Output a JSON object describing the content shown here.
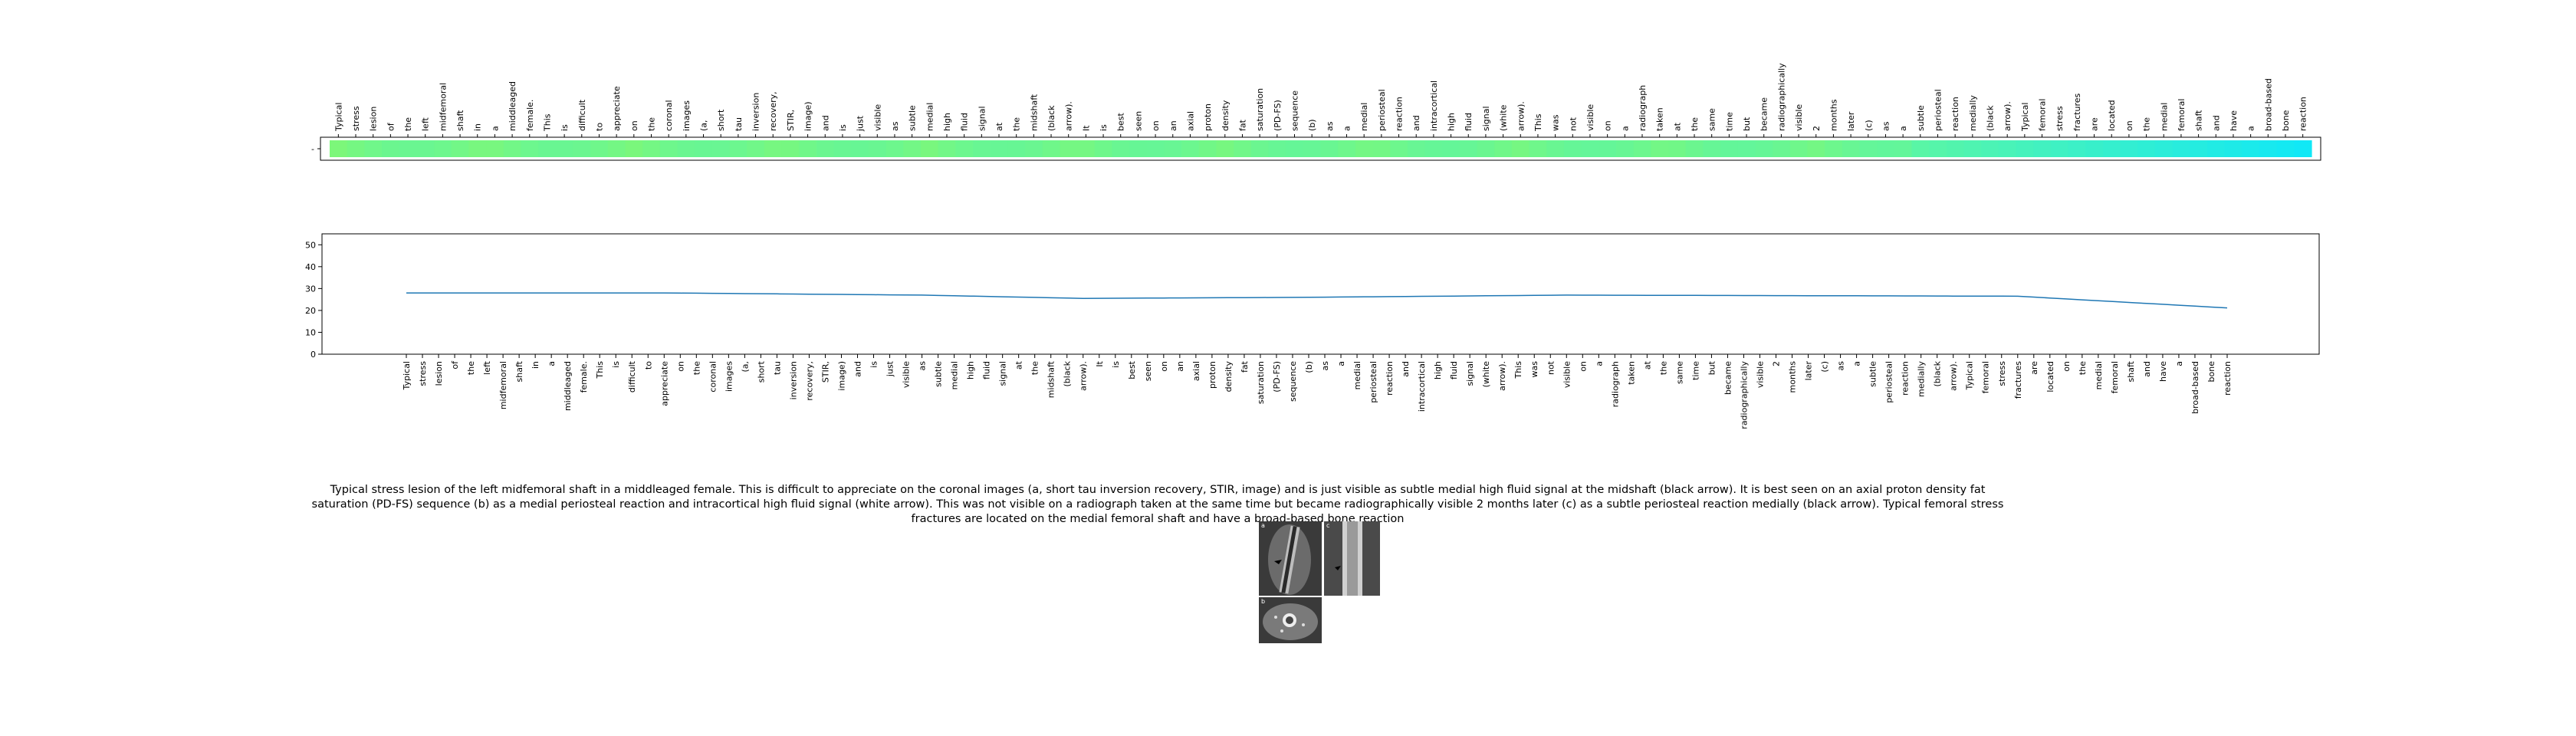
{
  "chart_data": [
    {
      "type": "heatmap",
      "tokens": [
        "Typical",
        "stress",
        "lesion",
        "of",
        "the",
        "left",
        "midfemoral",
        "shaft",
        "in",
        "a",
        "middleaged",
        "female.",
        "This",
        "is",
        "difficult",
        "to",
        "appreciate",
        "on",
        "the",
        "coronal",
        "images",
        "(a,",
        "short",
        "tau",
        "inversion",
        "recovery,",
        "STIR,",
        "image)",
        "and",
        "is",
        "just",
        "visible",
        "as",
        "subtle",
        "medial",
        "high",
        "fluid",
        "signal",
        "at",
        "the",
        "midshaft",
        "(black",
        "arrow).",
        "It",
        "is",
        "best",
        "seen",
        "on",
        "an",
        "axial",
        "proton",
        "density",
        "fat",
        "saturation",
        "(PD-FS)",
        "sequence",
        "(b)",
        "as",
        "a",
        "medial",
        "periosteal",
        "reaction",
        "and",
        "intracortical",
        "high",
        "fluid",
        "signal",
        "(white",
        "arrow).",
        "This",
        "was",
        "not",
        "visible",
        "on",
        "a",
        "radiograph",
        "taken",
        "at",
        "the",
        "same",
        "time",
        "but",
        "became",
        "radiographically",
        "visible",
        "2",
        "months",
        "later",
        "(c)",
        "as",
        "a",
        "subtle",
        "periosteal",
        "reaction",
        "medially",
        "(black",
        "arrow).",
        "Typical",
        "femoral",
        "stress",
        "fractures",
        "are",
        "located",
        "on",
        "the",
        "medial",
        "femoral",
        "shaft",
        "and",
        "have",
        "a",
        "broad-based",
        "bone",
        "reaction"
      ],
      "colors": {
        "start": "#7cf77a",
        "mid": "#5bf6a4",
        "end": "#11e8f6"
      },
      "ytick": "-"
    },
    {
      "type": "line",
      "yticks": [
        0,
        10,
        20,
        30,
        40,
        50
      ],
      "ylim": [
        0,
        55
      ],
      "color": "#1f77b4",
      "x_labels": [
        "Typical",
        "stress",
        "lesion",
        "of",
        "the",
        "left",
        "midfemoral",
        "shaft",
        "in",
        "a",
        "middleaged",
        "female.",
        "This",
        "is",
        "difficult",
        "to",
        "appreciate",
        "on",
        "the",
        "coronal",
        "images",
        "(a,",
        "short",
        "tau",
        "inversion",
        "recovery,",
        "STIR,",
        "image)",
        "and",
        "is",
        "just",
        "visible",
        "as",
        "subtle",
        "medial",
        "high",
        "fluid",
        "signal",
        "at",
        "the",
        "midshaft",
        "(black",
        "arrow).",
        "It",
        "is",
        "best",
        "seen",
        "on",
        "an",
        "axial",
        "proton",
        "density",
        "fat",
        "saturation",
        "(PD-FS)",
        "sequence",
        "(b)",
        "as",
        "a",
        "medial",
        "periosteal",
        "reaction",
        "and",
        "intracortical",
        "high",
        "fluid",
        "signal",
        "(white",
        "arrow).",
        "This",
        "was",
        "not",
        "visible",
        "on",
        "a",
        "radiograph",
        "taken",
        "at",
        "the",
        "same",
        "time",
        "but",
        "became",
        "radiographically",
        "visible",
        "2",
        "months",
        "later",
        "(c)",
        "as",
        "a",
        "subtle",
        "periosteal",
        "reaction",
        "medially",
        "(black",
        "arrow).",
        "Typical",
        "femoral",
        "stress",
        "fractures",
        "are",
        "located",
        "on",
        "the",
        "medial",
        "femoral",
        "shaft",
        "and",
        "have",
        "a",
        "broad-based",
        "bone",
        "reaction"
      ],
      "y_points": [
        {
          "index": 0,
          "value": 28
        },
        {
          "index": 16,
          "value": 28
        },
        {
          "index": 32,
          "value": 27
        },
        {
          "index": 42,
          "value": 25.5
        },
        {
          "index": 56,
          "value": 26
        },
        {
          "index": 72,
          "value": 27
        },
        {
          "index": 100,
          "value": 26.5
        },
        {
          "index": 117,
          "value": 19.5
        }
      ]
    }
  ],
  "caption": "Typical stress lesion of the left midfemoral shaft in a middleaged female. This is difficult to appreciate on the coronal images (a, short tau inversion recovery, STIR, image) and is just visible as subtle medial high fluid signal at the midshaft (black arrow). It is best seen on an axial proton density fat saturation (PD-FS) sequence (b) as a medial periosteal reaction and intracortical high fluid signal (white arrow). This was not visible on a radiograph taken at the same time but became radiographically visible 2 months later (c) as a subtle periosteal reaction medially (black arrow). Typical femoral stress fractures are located on the medial femoral shaft and have a broad-based bone reaction",
  "thumbnails": [
    {
      "name": "coronal-stir-thumbnail",
      "letter": "a"
    },
    {
      "name": "radiograph-thumbnail",
      "letter": "c"
    },
    {
      "name": "axial-pdfs-thumbnail",
      "letter": "b"
    }
  ]
}
